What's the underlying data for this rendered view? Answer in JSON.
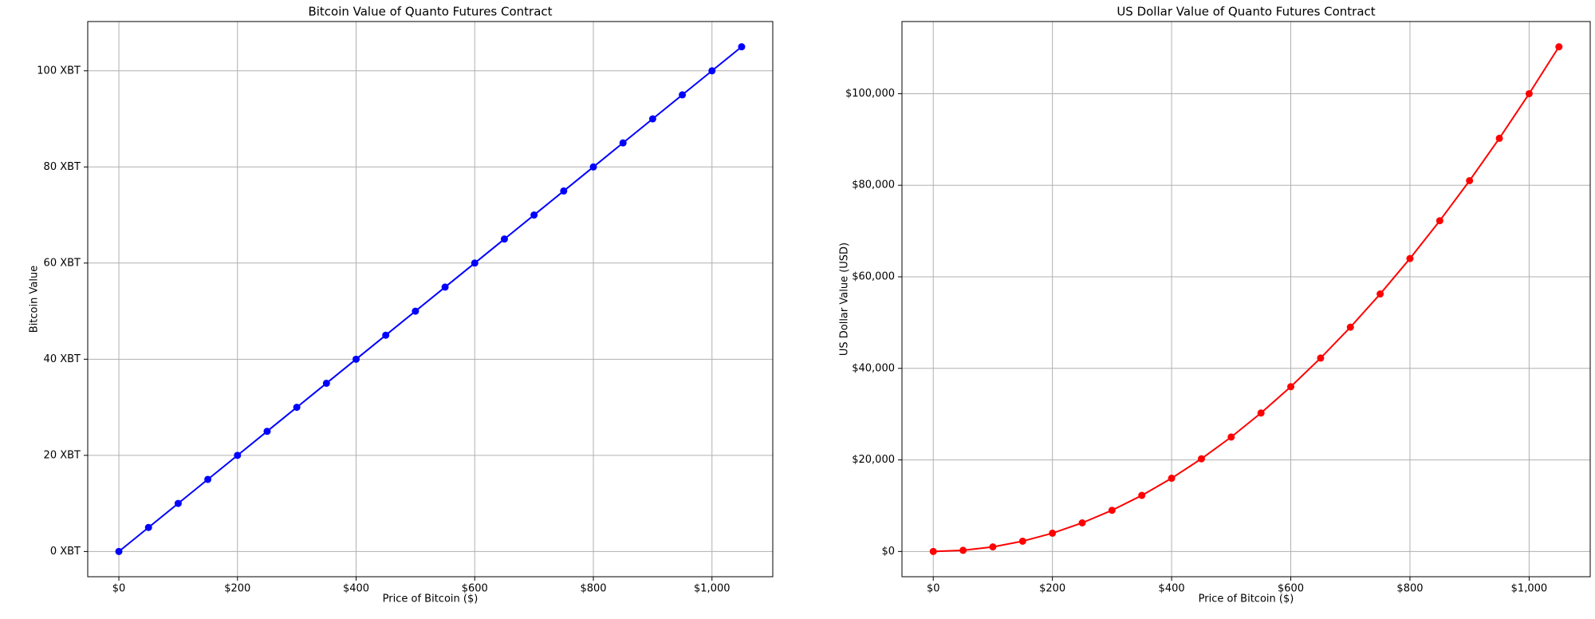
{
  "chart_data": [
    {
      "type": "line",
      "title": "Bitcoin Value of Quanto Futures Contract",
      "xlabel": "Price of Bitcoin ($)",
      "ylabel": "Bitcoin Value",
      "x": [
        0,
        50,
        100,
        150,
        200,
        250,
        300,
        350,
        400,
        450,
        500,
        550,
        600,
        650,
        700,
        750,
        800,
        850,
        900,
        950,
        1000,
        1050
      ],
      "series": [
        {
          "color": "#0000ff",
          "values": [
            0,
            5,
            10,
            15,
            20,
            25,
            30,
            35,
            40,
            45,
            50,
            55,
            60,
            65,
            70,
            75,
            80,
            85,
            90,
            95,
            100,
            105
          ]
        }
      ],
      "xlim": [
        -52.5,
        1102.5
      ],
      "xticks": [
        {
          "value": 0,
          "label": "$0"
        },
        {
          "value": 200,
          "label": "$200"
        },
        {
          "value": 400,
          "label": "$400"
        },
        {
          "value": 600,
          "label": "$600"
        },
        {
          "value": 800,
          "label": "$800"
        },
        {
          "value": 1000,
          "label": "$1,000"
        }
      ],
      "ylim": [
        -5.25,
        110.25
      ],
      "yticks": [
        {
          "value": 0,
          "label": "0 XBT"
        },
        {
          "value": 20,
          "label": "20 XBT"
        },
        {
          "value": 40,
          "label": "40 XBT"
        },
        {
          "value": 60,
          "label": "60 XBT"
        },
        {
          "value": 80,
          "label": "80 XBT"
        },
        {
          "value": 100,
          "label": "100 XBT"
        }
      ],
      "grid": true
    },
    {
      "type": "line",
      "title": "US Dollar Value of Quanto Futures Contract",
      "xlabel": "Price of Bitcoin ($)",
      "ylabel": "US Dollar Value (USD)",
      "x": [
        0,
        50,
        100,
        150,
        200,
        250,
        300,
        350,
        400,
        450,
        500,
        550,
        600,
        650,
        700,
        750,
        800,
        850,
        900,
        950,
        1000,
        1050
      ],
      "series": [
        {
          "color": "#ff0000",
          "values": [
            0,
            250,
            1000,
            2250,
            4000,
            6250,
            9000,
            12250,
            16000,
            20250,
            25000,
            30250,
            36000,
            42250,
            49000,
            56250,
            64000,
            72250,
            81000,
            90250,
            100000,
            110250
          ]
        }
      ],
      "xlim": [
        -52.5,
        1102.5
      ],
      "xticks": [
        {
          "value": 0,
          "label": "$0"
        },
        {
          "value": 200,
          "label": "$200"
        },
        {
          "value": 400,
          "label": "$400"
        },
        {
          "value": 600,
          "label": "$600"
        },
        {
          "value": 800,
          "label": "$800"
        },
        {
          "value": 1000,
          "label": "$1,000"
        }
      ],
      "ylim": [
        -5512.5,
        115762.5
      ],
      "yticks": [
        {
          "value": 0,
          "label": "$0"
        },
        {
          "value": 20000,
          "label": "$20,000"
        },
        {
          "value": 40000,
          "label": "$40,000"
        },
        {
          "value": 60000,
          "label": "$60,000"
        },
        {
          "value": 80000,
          "label": "$80,000"
        },
        {
          "value": 100000,
          "label": "$100,000"
        }
      ],
      "grid": true
    }
  ]
}
